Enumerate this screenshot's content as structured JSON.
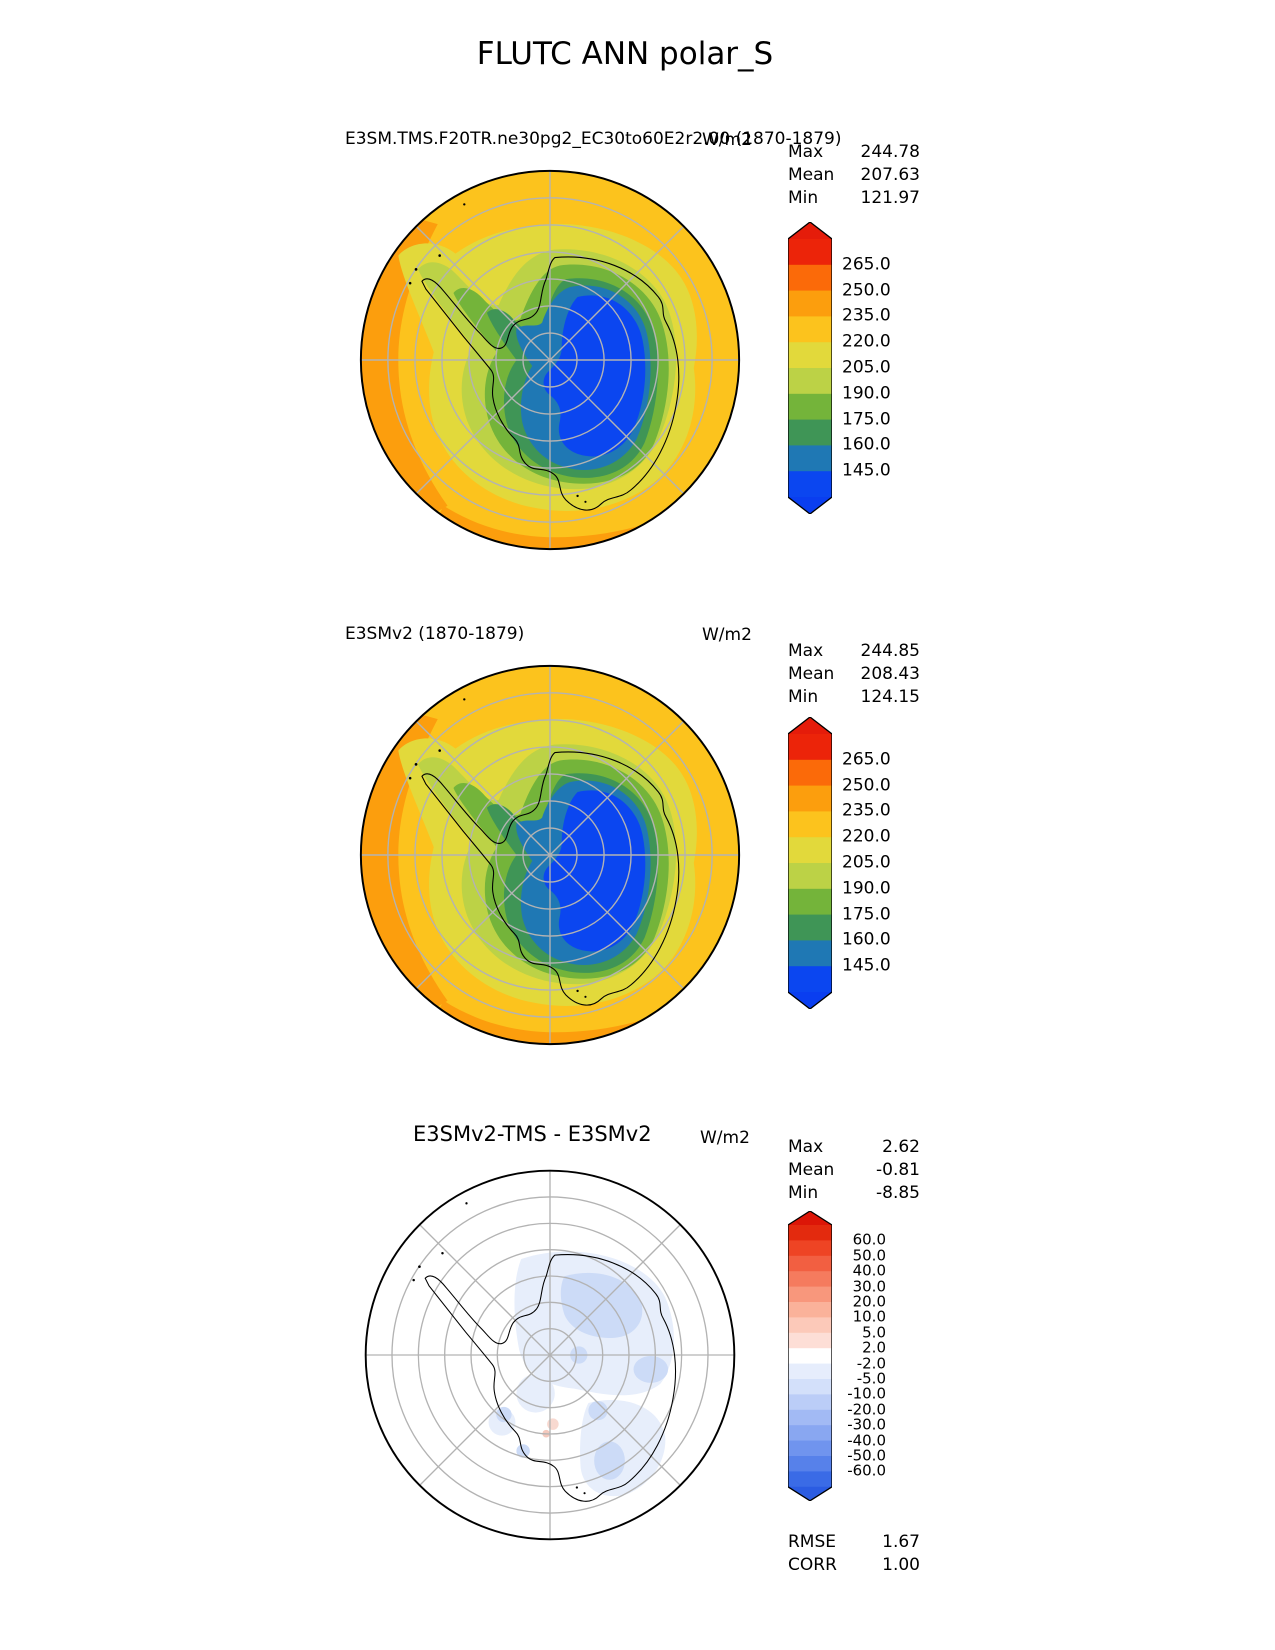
{
  "title": "FLUTC ANN polar_S",
  "panels": [
    {
      "name": "test",
      "title": "E3SM.TMS.F20TR.ne30pg2_EC30to60E2r2.00 (1870-1879)",
      "units": "W/m2",
      "stats": [
        {
          "label": "Max",
          "value": "244.78"
        },
        {
          "label": "Mean",
          "value": "207.63"
        },
        {
          "label": "Min",
          "value": "121.97"
        }
      ],
      "colorbar": {
        "labels": [
          "265.0",
          "250.0",
          "235.0",
          "220.0",
          "205.0",
          "190.0",
          "175.0",
          "160.0",
          "145.0"
        ],
        "colors": [
          "#ec2409",
          "#fb6a09",
          "#fc9e0d",
          "#fcc31d",
          "#e2d93b",
          "#bcd246",
          "#74b43a",
          "#3f9556",
          "#1f78b4",
          "#0b46f0"
        ],
        "cap_colors": [
          "#e51c0a",
          "#0a3ef0"
        ]
      }
    },
    {
      "name": "reference",
      "title": "E3SMv2 (1870-1879)",
      "units": "W/m2",
      "stats": [
        {
          "label": "Max",
          "value": "244.85"
        },
        {
          "label": "Mean",
          "value": "208.43"
        },
        {
          "label": "Min",
          "value": "124.15"
        }
      ],
      "colorbar": {
        "labels": [
          "265.0",
          "250.0",
          "235.0",
          "220.0",
          "205.0",
          "190.0",
          "175.0",
          "160.0",
          "145.0"
        ],
        "colors": [
          "#ec2409",
          "#fb6a09",
          "#fc9e0d",
          "#fcc31d",
          "#e2d93b",
          "#bcd246",
          "#74b43a",
          "#3f9556",
          "#1f78b4",
          "#0b46f0"
        ],
        "cap_colors": [
          "#e51c0a",
          "#0a3ef0"
        ]
      }
    },
    {
      "name": "difference",
      "title": "E3SMv2-TMS - E3SMv2",
      "units": "W/m2",
      "stats": [
        {
          "label": "Max",
          "value": "2.62"
        },
        {
          "label": "Mean",
          "value": "-0.81"
        },
        {
          "label": "Min",
          "value": "-8.85"
        }
      ],
      "colorbar": {
        "labels": [
          "60.0",
          "50.0",
          "40.0",
          "30.0",
          "20.0",
          "10.0",
          "5.0",
          "2.0",
          "-2.0",
          "-5.0",
          "-10.0",
          "-20.0",
          "-30.0",
          "-40.0",
          "-50.0",
          "-60.0"
        ],
        "colors": [
          "#e32a0e",
          "#ee4424",
          "#f25f41",
          "#f57b5e",
          "#f8977c",
          "#fab29a",
          "#fcc9b9",
          "#fdded6",
          "#ffffff",
          "#e6edfc",
          "#d3e0fa",
          "#bbcdf7",
          "#a2baf4",
          "#89a7f1",
          "#7094ee",
          "#5781ea",
          "#3a6be6"
        ],
        "cap_colors": [
          "#dc1607",
          "#2b5ce2"
        ]
      }
    }
  ],
  "metrics": [
    {
      "label": "RMSE",
      "value": "1.67"
    },
    {
      "label": "CORR",
      "value": "1.00"
    }
  ],
  "chart_data": [
    {
      "type": "heatmap",
      "subtype": "filled_contour_polar_map",
      "projection": "south_polar_stereographic",
      "lat_range": [
        -90,
        -55
      ],
      "variable": "FLUTC",
      "season": "ANN",
      "region": "polar_S",
      "title": "E3SM.TMS.F20TR.ne30pg2_EC30to60E2r2.00 (1870-1879)",
      "units": "W/m2",
      "contour_levels": [
        145,
        160,
        175,
        190,
        205,
        220,
        235,
        250,
        265
      ],
      "extend": "both",
      "colors": [
        "#ec2409",
        "#fb6a09",
        "#fc9e0d",
        "#fcc31d",
        "#e2d93b",
        "#bcd246",
        "#74b43a",
        "#3f9556",
        "#1f78b4",
        "#0b46f0"
      ],
      "stats": {
        "max": 244.78,
        "mean": 207.63,
        "min": 121.97
      },
      "legend_position": "right",
      "graticule": {
        "lat_circle_spacing_deg": 5,
        "lon_spoke_spacing_deg": 45
      }
    },
    {
      "type": "heatmap",
      "subtype": "filled_contour_polar_map",
      "projection": "south_polar_stereographic",
      "lat_range": [
        -90,
        -55
      ],
      "variable": "FLUTC",
      "season": "ANN",
      "region": "polar_S",
      "title": "E3SMv2 (1870-1879)",
      "units": "W/m2",
      "contour_levels": [
        145,
        160,
        175,
        190,
        205,
        220,
        235,
        250,
        265
      ],
      "extend": "both",
      "colors": [
        "#ec2409",
        "#fb6a09",
        "#fc9e0d",
        "#fcc31d",
        "#e2d93b",
        "#bcd246",
        "#74b43a",
        "#3f9556",
        "#1f78b4",
        "#0b46f0"
      ],
      "stats": {
        "max": 244.85,
        "mean": 208.43,
        "min": 124.15
      },
      "legend_position": "right",
      "graticule": {
        "lat_circle_spacing_deg": 5,
        "lon_spoke_spacing_deg": 45
      }
    },
    {
      "type": "heatmap",
      "subtype": "difference_contour_polar_map",
      "projection": "south_polar_stereographic",
      "lat_range": [
        -90,
        -55
      ],
      "variable": "FLUTC",
      "season": "ANN",
      "region": "polar_S",
      "title": "E3SMv2-TMS - E3SMv2",
      "units": "W/m2",
      "contour_levels": [
        -60,
        -50,
        -40,
        -30,
        -20,
        -10,
        -5,
        -2,
        2,
        5,
        10,
        20,
        30,
        40,
        50,
        60
      ],
      "extend": "both",
      "colormap": "blue-white-red diverging",
      "stats": {
        "max": 2.62,
        "mean": -0.81,
        "min": -8.85
      },
      "rmse": 1.67,
      "corr": 1.0,
      "legend_position": "right",
      "graticule": {
        "lat_circle_spacing_deg": 5,
        "lon_spoke_spacing_deg": 45
      }
    }
  ]
}
